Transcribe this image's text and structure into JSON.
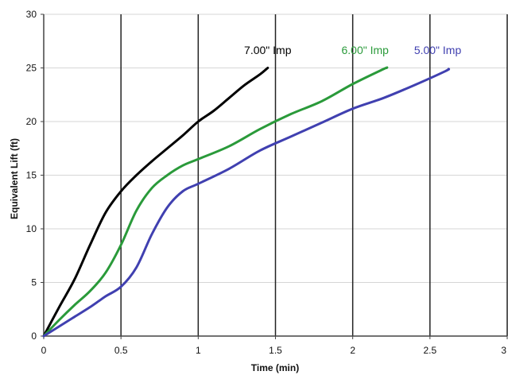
{
  "chart_data": {
    "type": "line",
    "title": "",
    "xlabel": "Time (min)",
    "ylabel": "Equivalent Lift (ft)",
    "xlim": [
      0,
      3
    ],
    "ylim": [
      0,
      30
    ],
    "x_ticks": [
      "0",
      "0.5",
      "1",
      "1.5",
      "2",
      "2.5",
      "3"
    ],
    "y_ticks": [
      "0",
      "5",
      "10",
      "15",
      "20",
      "25",
      "30"
    ],
    "grid": {
      "vertical": true,
      "horizontal": true
    },
    "legend": "none",
    "series": [
      {
        "name": "7.00\" Imp",
        "color": "#000000",
        "points": [
          [
            0,
            0
          ],
          [
            0.1,
            2.7
          ],
          [
            0.2,
            5.3
          ],
          [
            0.3,
            8.5
          ],
          [
            0.4,
            11.5
          ],
          [
            0.5,
            13.5
          ],
          [
            0.6,
            15.0
          ],
          [
            0.7,
            16.3
          ],
          [
            0.8,
            17.5
          ],
          [
            0.9,
            18.7
          ],
          [
            1.0,
            20.0
          ],
          [
            1.1,
            21.0
          ],
          [
            1.2,
            22.2
          ],
          [
            1.3,
            23.4
          ],
          [
            1.4,
            24.4
          ],
          [
            1.45,
            25.0
          ]
        ]
      },
      {
        "name": "6.00\" Imp",
        "color": "#2a9a3a",
        "points": [
          [
            0,
            0
          ],
          [
            0.1,
            1.5
          ],
          [
            0.2,
            2.9
          ],
          [
            0.3,
            4.2
          ],
          [
            0.4,
            5.9
          ],
          [
            0.5,
            8.5
          ],
          [
            0.6,
            11.7
          ],
          [
            0.7,
            13.8
          ],
          [
            0.8,
            15.0
          ],
          [
            0.9,
            15.9
          ],
          [
            1.0,
            16.5
          ],
          [
            1.2,
            17.7
          ],
          [
            1.4,
            19.3
          ],
          [
            1.6,
            20.7
          ],
          [
            1.8,
            21.9
          ],
          [
            2.0,
            23.5
          ],
          [
            2.2,
            24.9
          ],
          [
            2.22,
            25.0
          ]
        ]
      },
      {
        "name": "5.00\" Imp",
        "color": "#4040b0",
        "points": [
          [
            0,
            0
          ],
          [
            0.1,
            0.9
          ],
          [
            0.2,
            1.8
          ],
          [
            0.3,
            2.7
          ],
          [
            0.4,
            3.7
          ],
          [
            0.5,
            4.6
          ],
          [
            0.6,
            6.4
          ],
          [
            0.7,
            9.5
          ],
          [
            0.8,
            12.0
          ],
          [
            0.9,
            13.5
          ],
          [
            1.0,
            14.2
          ],
          [
            1.2,
            15.6
          ],
          [
            1.4,
            17.3
          ],
          [
            1.6,
            18.6
          ],
          [
            1.8,
            19.9
          ],
          [
            2.0,
            21.2
          ],
          [
            2.2,
            22.2
          ],
          [
            2.4,
            23.4
          ],
          [
            2.6,
            24.7
          ],
          [
            2.62,
            24.9
          ]
        ]
      }
    ],
    "labels": [
      {
        "text": "7.00\" Imp",
        "color": "#000000",
        "x": 1.45,
        "y": 26.3
      },
      {
        "text": "6.00\" Imp",
        "color": "#2a9a3a",
        "x": 2.08,
        "y": 26.3
      },
      {
        "text": "5.00\" Imp",
        "color": "#4040b0",
        "x": 2.55,
        "y": 26.3
      }
    ]
  }
}
